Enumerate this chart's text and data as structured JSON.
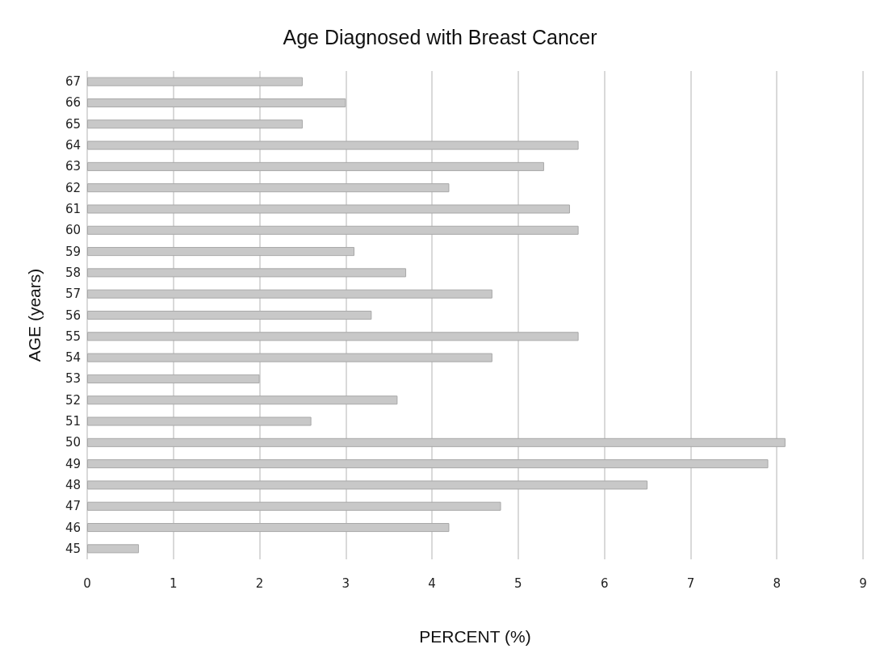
{
  "chart_data": {
    "type": "bar",
    "orientation": "horizontal",
    "title": "Age Diagnosed with Breast Cancer",
    "xlabel": "PERCENT (%)",
    "ylabel": "AGE (years)",
    "categories": [
      "67",
      "66",
      "65",
      "64",
      "63",
      "62",
      "61",
      "60",
      "59",
      "58",
      "57",
      "56",
      "55",
      "54",
      "53",
      "52",
      "51",
      "50",
      "49",
      "48",
      "47",
      "46",
      "45"
    ],
    "values": [
      2.5,
      3.0,
      2.5,
      5.7,
      5.3,
      4.2,
      5.6,
      5.7,
      3.1,
      3.7,
      4.7,
      3.3,
      5.7,
      4.7,
      2.0,
      3.6,
      2.6,
      8.1,
      7.9,
      6.5,
      4.8,
      4.2,
      0.6
    ],
    "color": "#c8c8c8",
    "xlim": [
      0,
      9
    ],
    "xticks": [
      0,
      1,
      2,
      3,
      4,
      5,
      6,
      7,
      8,
      9
    ],
    "grid": "x"
  }
}
